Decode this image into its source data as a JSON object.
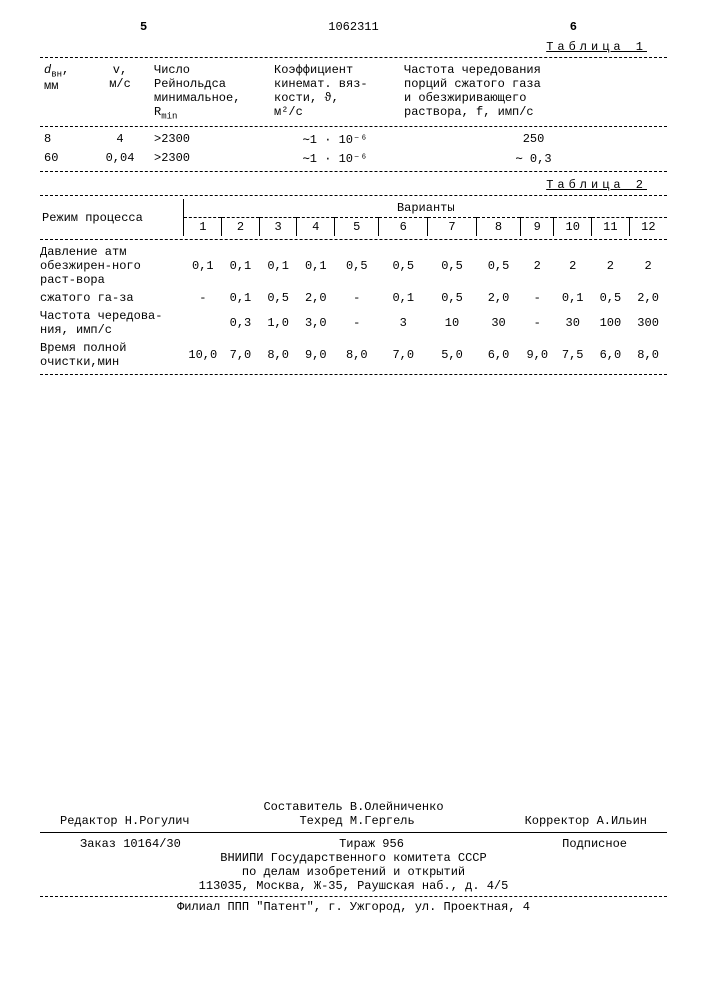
{
  "page_left": "5",
  "page_right": "6",
  "doc_number": "1062311",
  "table1_label": "Таблица 1",
  "table2_label": "Таблица 2",
  "t1": {
    "headers": {
      "c1": "d",
      "c1_sub": "вн",
      "c1_unit": "мм",
      "c2": "v,",
      "c2_unit": "м/с",
      "c3_l1": "Число",
      "c3_l2": "Рейнольдса",
      "c3_l3": "минимальное,",
      "c3_l4": "R",
      "c3_sub": "min",
      "c4_l1": "Коэффициент",
      "c4_l2": "кинемат. вяз-",
      "c4_l3": "кости, ϑ,",
      "c4_l4": "м²/с",
      "c5_l1": "Частота чередования",
      "c5_l2": "порций сжатого газа",
      "c5_l3": "и обезжиривающего",
      "c5_l4": "раствора, f, имп/с"
    },
    "rows": [
      {
        "d": "8",
        "v": "4",
        "r": ">2300",
        "k": "∼1 · 10⁻⁶",
        "f": "250"
      },
      {
        "d": "60",
        "v": "0,04",
        "r": ">2300",
        "k": "∼1 · 10⁻⁶",
        "f": "∼ 0,3"
      }
    ]
  },
  "t2": {
    "proc_label": "Режим процесса",
    "var_label": "Варианты",
    "cols": [
      "1",
      "2",
      "3",
      "4",
      "5",
      "6",
      "7",
      "8",
      "9",
      "10",
      "11",
      "12"
    ],
    "rows": [
      {
        "label": "Давление атм обезжирен-ного раст-вора",
        "vals": [
          "0,1",
          "0,1",
          "0,1",
          "0,1",
          "0,5",
          "0,5",
          "0,5",
          "0,5",
          "2",
          "2",
          "2",
          "2"
        ]
      },
      {
        "label": "сжатого га-за",
        "vals": [
          "-",
          "0,1",
          "0,5",
          "2,0",
          "-",
          "0,1",
          "0,5",
          "2,0",
          "-",
          "0,1",
          "0,5",
          "2,0"
        ]
      },
      {
        "label": "Частота чередова-ния, имп/с",
        "vals": [
          "",
          "0,3",
          "1,0",
          "3,0",
          "-",
          "3",
          "10",
          "30",
          "-",
          "30",
          "100",
          "300"
        ]
      },
      {
        "label": "Время полной очистки,мин",
        "vals": [
          "10,0",
          "7,0",
          "8,0",
          "9,0",
          "8,0",
          "7,0",
          "5,0",
          "6,0",
          "9,0",
          "7,5",
          "6,0",
          "8,0"
        ]
      }
    ]
  },
  "footer": {
    "compiler": "Составитель В.Олейниченко",
    "editor": "Редактор Н.Рогулич",
    "techred": "Техред М.Гергель",
    "corrector": "Корректор А.Ильин",
    "order": "Заказ 10164/30",
    "tirage": "Тираж   956",
    "subscription": "Подписное",
    "org1": "ВНИИПИ Государственного комитета СССР",
    "org2": "по делам изобретений и открытий",
    "addr": "113035, Москва, Ж-35, Раушская наб., д. 4/5",
    "branch": "Филиал ППП \"Патент\", г. Ужгород, ул. Проектная, 4"
  }
}
